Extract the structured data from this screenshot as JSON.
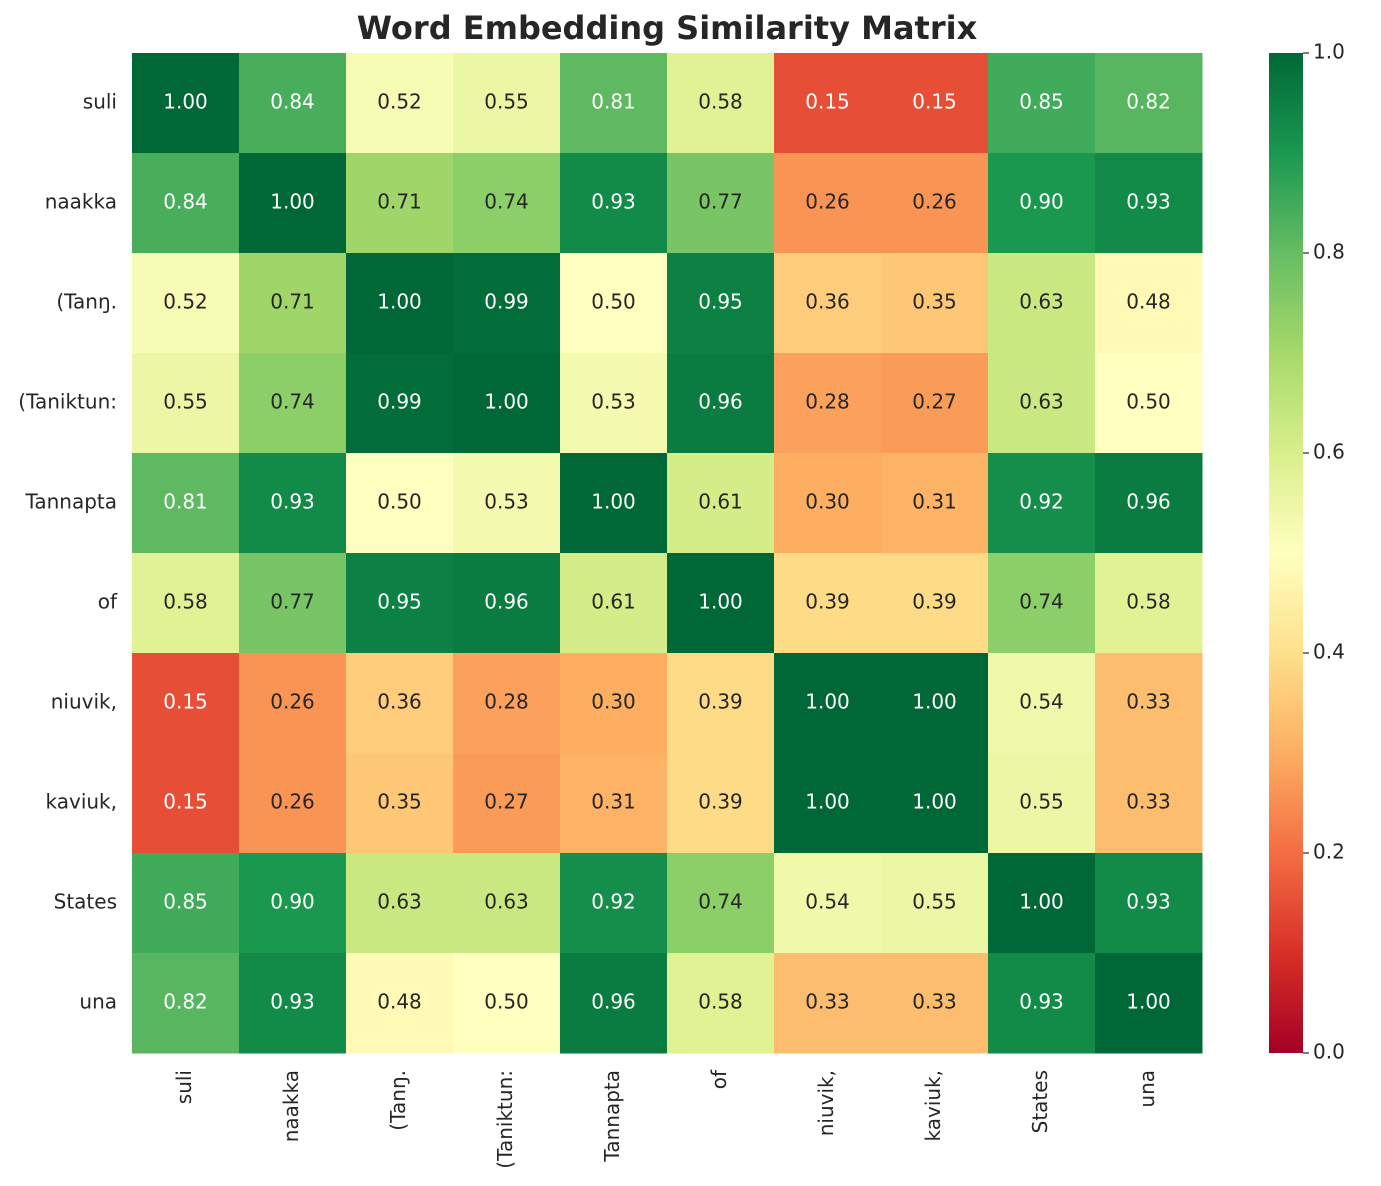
{
  "chart_data": {
    "type": "heatmap",
    "title": "Word Embedding Similarity Matrix",
    "x_categories": [
      "suli",
      "naakka",
      "(Tanŋ.",
      "(Taniktun:",
      "Tannapta",
      "of",
      "niuvik,",
      "kaviuk,",
      "States",
      "una"
    ],
    "y_categories": [
      "suli",
      "naakka",
      "(Tanŋ.",
      "(Taniktun:",
      "Tannapta",
      "of",
      "niuvik,",
      "kaviuk,",
      "States",
      "una"
    ],
    "values": [
      [
        1.0,
        0.84,
        0.52,
        0.55,
        0.81,
        0.58,
        0.15,
        0.15,
        0.85,
        0.82
      ],
      [
        0.84,
        1.0,
        0.71,
        0.74,
        0.93,
        0.77,
        0.26,
        0.26,
        0.9,
        0.93
      ],
      [
        0.52,
        0.71,
        1.0,
        0.99,
        0.5,
        0.95,
        0.36,
        0.35,
        0.63,
        0.48
      ],
      [
        0.55,
        0.74,
        0.99,
        1.0,
        0.53,
        0.96,
        0.28,
        0.27,
        0.63,
        0.5
      ],
      [
        0.81,
        0.93,
        0.5,
        0.53,
        1.0,
        0.61,
        0.3,
        0.31,
        0.92,
        0.96
      ],
      [
        0.58,
        0.77,
        0.95,
        0.96,
        0.61,
        1.0,
        0.39,
        0.39,
        0.74,
        0.58
      ],
      [
        0.15,
        0.26,
        0.36,
        0.28,
        0.3,
        0.39,
        1.0,
        1.0,
        0.54,
        0.33
      ],
      [
        0.15,
        0.26,
        0.35,
        0.27,
        0.31,
        0.39,
        1.0,
        1.0,
        0.55,
        0.33
      ],
      [
        0.85,
        0.9,
        0.63,
        0.63,
        0.92,
        0.74,
        0.54,
        0.55,
        1.0,
        0.93
      ],
      [
        0.82,
        0.93,
        0.48,
        0.5,
        0.96,
        0.58,
        0.33,
        0.33,
        0.93,
        1.0
      ]
    ],
    "value_labels": [
      [
        "1.00",
        "0.84",
        "0.52",
        "0.55",
        "0.81",
        "0.58",
        "0.15",
        "0.15",
        "0.85",
        "0.82"
      ],
      [
        "0.84",
        "1.00",
        "0.71",
        "0.74",
        "0.93",
        "0.77",
        "0.26",
        "0.26",
        "0.90",
        "0.93"
      ],
      [
        "0.52",
        "0.71",
        "1.00",
        "0.99",
        "0.50",
        "0.95",
        "0.36",
        "0.35",
        "0.63",
        "0.48"
      ],
      [
        "0.55",
        "0.74",
        "0.99",
        "1.00",
        "0.53",
        "0.96",
        "0.28",
        "0.27",
        "0.63",
        "0.50"
      ],
      [
        "0.81",
        "0.93",
        "0.50",
        "0.53",
        "1.00",
        "0.61",
        "0.30",
        "0.31",
        "0.92",
        "0.96"
      ],
      [
        "0.58",
        "0.77",
        "0.95",
        "0.96",
        "0.61",
        "1.00",
        "0.39",
        "0.39",
        "0.74",
        "0.58"
      ],
      [
        "0.15",
        "0.26",
        "0.36",
        "0.28",
        "0.30",
        "0.39",
        "1.00",
        "1.00",
        "0.54",
        "0.33"
      ],
      [
        "0.15",
        "0.26",
        "0.35",
        "0.27",
        "0.31",
        "0.39",
        "1.00",
        "1.00",
        "0.55",
        "0.33"
      ],
      [
        "0.85",
        "0.90",
        "0.63",
        "0.63",
        "0.92",
        "0.74",
        "0.54",
        "0.55",
        "1.00",
        "0.93"
      ],
      [
        "0.82",
        "0.93",
        "0.48",
        "0.50",
        "0.96",
        "0.58",
        "0.33",
        "0.33",
        "0.93",
        "1.00"
      ]
    ],
    "colormap": "RdYlGn",
    "clim": [
      0,
      1
    ],
    "cticks": [
      {
        "value": 0,
        "label": "0.0"
      },
      0.2,
      0.4,
      0.6,
      0.8,
      {
        "value": 1,
        "label": "1.0"
      }
    ]
  }
}
